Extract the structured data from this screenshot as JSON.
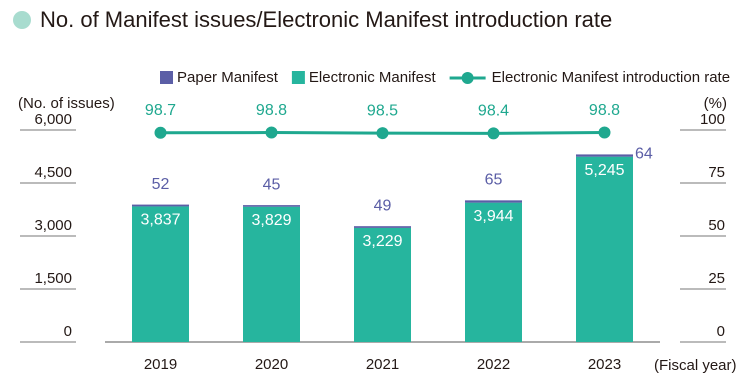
{
  "chart_data": {
    "type": "bar",
    "stacked": true,
    "title": "No. of Manifest issues/Electronic Manifest introduction rate",
    "y_label": "(No. of issues)",
    "y2_label": "(%)",
    "x_label": "(Fiscal year)",
    "categories": [
      "2019",
      "2020",
      "2021",
      "2022",
      "2023"
    ],
    "series": [
      {
        "name": "Paper Manifest",
        "color": "#5b5ea6",
        "values": [
          52,
          45,
          49,
          65,
          64
        ]
      },
      {
        "name": "Electronic Manifest",
        "color": "#26b59e",
        "values": [
          3837,
          3829,
          3229,
          3944,
          5245
        ],
        "value_labels": [
          "3,837",
          "3,829",
          "3,229",
          "3,944",
          "5,245"
        ]
      },
      {
        "name": "Electronic Manifest introduction rate",
        "type": "line",
        "axis": "y2",
        "color": "#1fa88f",
        "values": [
          98.7,
          98.8,
          98.5,
          98.4,
          98.8
        ]
      }
    ],
    "ylim": [
      0,
      6000
    ],
    "yticks": [
      0,
      {
        "value": 1500,
        "label": "1,500"
      },
      {
        "value": 3000,
        "label": "3,000"
      },
      {
        "value": 4500,
        "label": "4,500"
      },
      {
        "value": 6000,
        "label": "6,000"
      }
    ],
    "y2lim": [
      0,
      100
    ],
    "y2ticks": [
      0,
      25,
      50,
      75,
      100
    ]
  }
}
